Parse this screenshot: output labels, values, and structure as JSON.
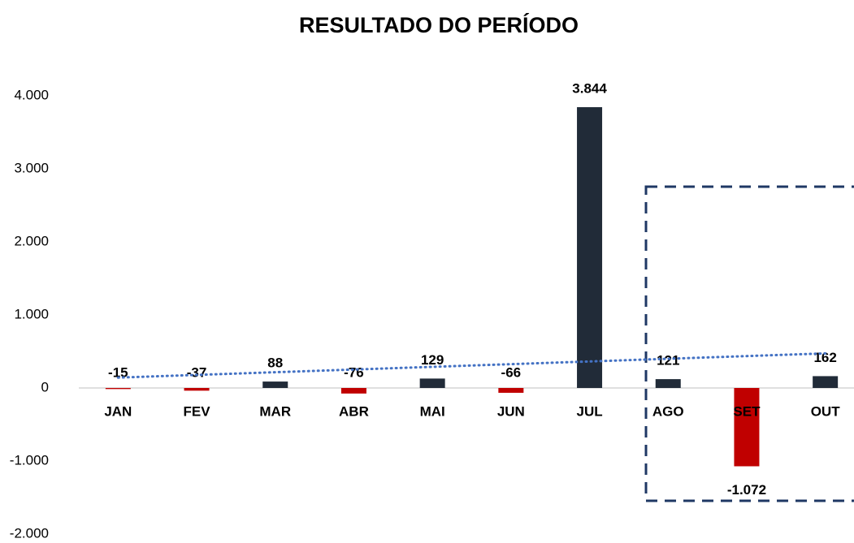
{
  "chart_data": {
    "type": "bar",
    "title": "RESULTADO DO PERÍODO",
    "categories": [
      "JAN",
      "FEV",
      "MAR",
      "ABR",
      "MAI",
      "JUN",
      "JUL",
      "AGO",
      "SET",
      "OUT"
    ],
    "values": [
      -15,
      -37,
      88,
      -76,
      129,
      -66,
      3844,
      121,
      -1072,
      162
    ],
    "value_labels": [
      "-15",
      "-37",
      "88",
      "-76",
      "129",
      "-66",
      "3.844",
      "121",
      "-1.072",
      "162"
    ],
    "colors": [
      "#c00000",
      "#c00000",
      "#212b38",
      "#c00000",
      "#212b38",
      "#c00000",
      "#212b38",
      "#212b38",
      "#c00000",
      "#212b38"
    ],
    "ylim": [
      -2000,
      4000
    ],
    "yticks": [
      {
        "value": -2000,
        "label": "-2.000"
      },
      {
        "value": -1000,
        "label": "-1.000"
      },
      0,
      {
        "value": 1000,
        "label": "1.000"
      },
      {
        "value": 2000,
        "label": "2.000"
      },
      {
        "value": 3000,
        "label": "3.000"
      },
      {
        "value": 4000,
        "label": "4.000"
      }
    ],
    "grid": false,
    "trendline": {
      "type": "linear",
      "color": "#4472c4"
    }
  }
}
